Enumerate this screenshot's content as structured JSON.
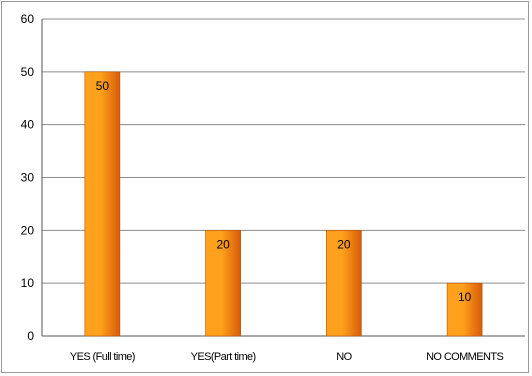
{
  "chart_data": {
    "type": "bar",
    "categories": [
      "YES (Full time)",
      "YES(Part time)",
      "NO",
      "NO COMMENTS"
    ],
    "values": [
      50,
      20,
      20,
      10
    ],
    "data_labels": [
      "50",
      "20",
      "20",
      "10"
    ],
    "title": "",
    "xlabel": "",
    "ylabel": "",
    "ylim": [
      0,
      60
    ],
    "yticks": [
      "0",
      "10",
      "20",
      "30",
      "40",
      "50",
      "60"
    ],
    "grid": true,
    "legend": "none",
    "colors": {
      "bar_light": "#ffa11c",
      "bar_dark": "#d65c08",
      "bar_edge": "#b84f05",
      "gridline": "#8c8c8c",
      "axis": "#555555"
    }
  }
}
